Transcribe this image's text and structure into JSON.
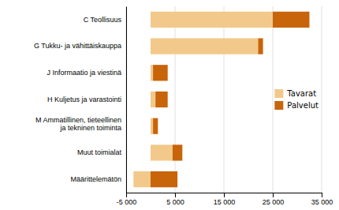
{
  "chart_data": {
    "type": "bar",
    "orientation": "horizontal",
    "stacked": true,
    "categories": [
      "C Teollisuus",
      "G Tukku- ja vähittäiskauppa",
      "J Informaatio ja viestinä",
      "H Kuljetus ja varastointi",
      "M Ammatillinen, tieteellinen\nja tekninen toiminta",
      "Muut toimialat",
      "Määrittelemätön"
    ],
    "series": [
      {
        "name": "Tavarat",
        "color": "#f2c98a",
        "values": [
          25000,
          22000,
          500,
          1000,
          500,
          4500,
          -3500
        ]
      },
      {
        "name": "Palvelut",
        "color": "#c8640a",
        "values": [
          7500,
          1000,
          3000,
          2500,
          1000,
          2000,
          5500
        ]
      }
    ],
    "xlim": [
      -5000,
      35000
    ],
    "xticks": [
      {
        "value": -5000,
        "label": "-5 000"
      },
      {
        "value": 5000,
        "label": "5 000"
      },
      {
        "value": 15000,
        "label": "15 000"
      },
      {
        "value": 25000,
        "label": "25 000"
      },
      {
        "value": 35000,
        "label": "35 000"
      }
    ],
    "grid": true,
    "legend": "right"
  }
}
